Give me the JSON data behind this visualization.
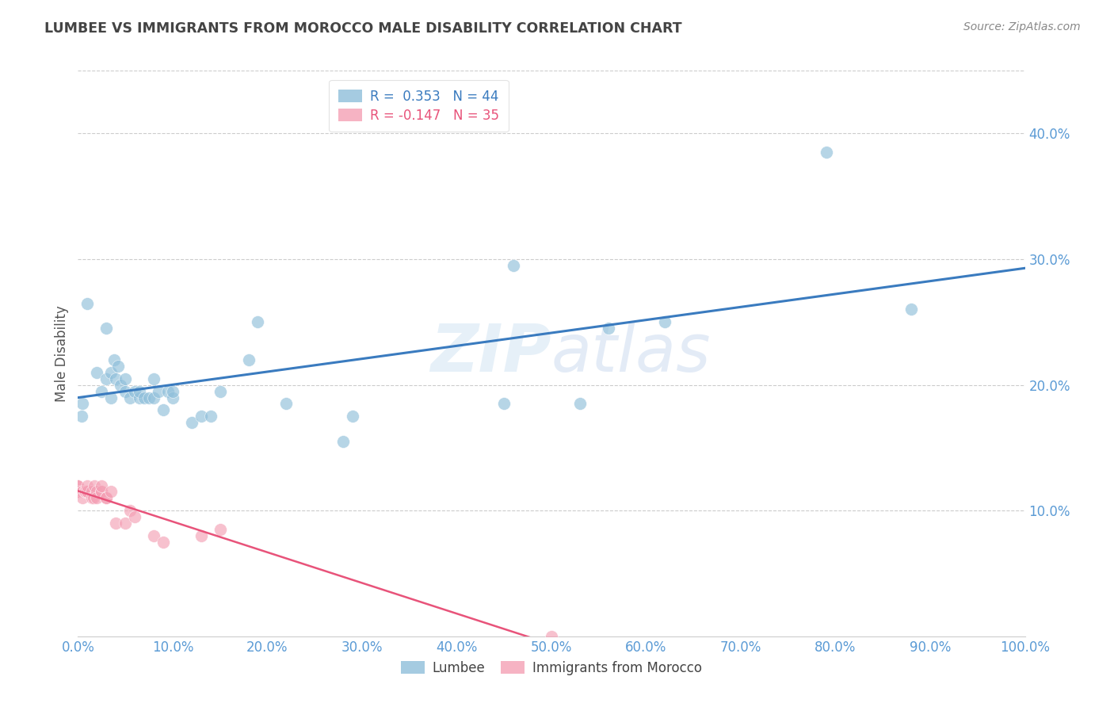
{
  "title": "LUMBEE VS IMMIGRANTS FROM MOROCCO MALE DISABILITY CORRELATION CHART",
  "source": "Source: ZipAtlas.com",
  "xlabel": "",
  "ylabel": "Male Disability",
  "watermark": "ZIPatlas",
  "lumbee_R": 0.353,
  "lumbee_N": 44,
  "morocco_R": -0.147,
  "morocco_N": 35,
  "lumbee_color": "#8fbfda",
  "morocco_color": "#f4a0b5",
  "lumbee_line_color": "#3a7bbf",
  "morocco_line_color": "#e8537a",
  "background_color": "#ffffff",
  "grid_color": "#cccccc",
  "axis_label_color": "#5b9bd5",
  "ylabel_color": "#555555",
  "title_color": "#444444",
  "source_color": "#888888",
  "xlim": [
    0.0,
    1.0
  ],
  "ylim": [
    0.0,
    0.45
  ],
  "xticks": [
    0.0,
    0.1,
    0.2,
    0.3,
    0.4,
    0.5,
    0.6,
    0.7,
    0.8,
    0.9,
    1.0
  ],
  "yticks": [
    0.1,
    0.2,
    0.3,
    0.4
  ],
  "lumbee_x": [
    0.004,
    0.005,
    0.01,
    0.02,
    0.025,
    0.03,
    0.03,
    0.035,
    0.035,
    0.038,
    0.04,
    0.042,
    0.045,
    0.05,
    0.05,
    0.055,
    0.06,
    0.065,
    0.065,
    0.07,
    0.075,
    0.08,
    0.08,
    0.085,
    0.09,
    0.095,
    0.1,
    0.1,
    0.12,
    0.13,
    0.14,
    0.15,
    0.18,
    0.19,
    0.22,
    0.28,
    0.29,
    0.45,
    0.46,
    0.53,
    0.56,
    0.62,
    0.79,
    0.88
  ],
  "lumbee_y": [
    0.175,
    0.185,
    0.265,
    0.21,
    0.195,
    0.205,
    0.245,
    0.19,
    0.21,
    0.22,
    0.205,
    0.215,
    0.2,
    0.195,
    0.205,
    0.19,
    0.195,
    0.19,
    0.195,
    0.19,
    0.19,
    0.19,
    0.205,
    0.195,
    0.18,
    0.195,
    0.19,
    0.195,
    0.17,
    0.175,
    0.175,
    0.195,
    0.22,
    0.25,
    0.185,
    0.155,
    0.175,
    0.185,
    0.295,
    0.185,
    0.245,
    0.25,
    0.385,
    0.26
  ],
  "morocco_x": [
    0.0,
    0.0,
    0.0,
    0.0,
    0.0,
    0.0,
    0.005,
    0.005,
    0.005,
    0.007,
    0.008,
    0.01,
    0.01,
    0.01,
    0.015,
    0.015,
    0.016,
    0.017,
    0.02,
    0.02,
    0.025,
    0.025,
    0.025,
    0.03,
    0.03,
    0.035,
    0.04,
    0.05,
    0.055,
    0.06,
    0.08,
    0.09,
    0.13,
    0.15,
    0.5
  ],
  "morocco_y": [
    0.115,
    0.12,
    0.12,
    0.115,
    0.115,
    0.12,
    0.115,
    0.115,
    0.11,
    0.115,
    0.115,
    0.115,
    0.115,
    0.12,
    0.115,
    0.11,
    0.11,
    0.12,
    0.115,
    0.11,
    0.115,
    0.115,
    0.12,
    0.11,
    0.11,
    0.115,
    0.09,
    0.09,
    0.1,
    0.095,
    0.08,
    0.075,
    0.08,
    0.085,
    0.0
  ]
}
